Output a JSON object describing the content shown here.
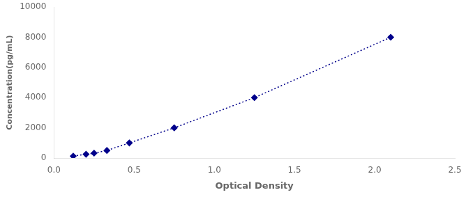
{
  "chart_data": {
    "type": "line",
    "x": [
      0.12,
      0.2,
      0.25,
      0.33,
      0.47,
      0.75,
      1.25,
      2.1
    ],
    "values": [
      125,
      250,
      320,
      500,
      1000,
      2000,
      4000,
      8000
    ],
    "color": "#00008B",
    "marker": "diamond",
    "line_style": "dotted",
    "xlabel": "Optical Density",
    "ylabel": "Concentration(pg/mL)",
    "xlim": [
      0,
      2.5
    ],
    "ylim": [
      0,
      10000
    ],
    "xticks": [
      {
        "value": 0,
        "label": "0.0"
      },
      {
        "value": 0.5,
        "label": "0.5"
      },
      {
        "value": 1,
        "label": "1.0"
      },
      {
        "value": 1.5,
        "label": "1.5"
      },
      {
        "value": 2,
        "label": "2.0"
      },
      {
        "value": 2.5,
        "label": "2.5"
      }
    ],
    "yticks": [
      0,
      2000,
      4000,
      6000,
      8000,
      10000
    ],
    "grid": false
  }
}
